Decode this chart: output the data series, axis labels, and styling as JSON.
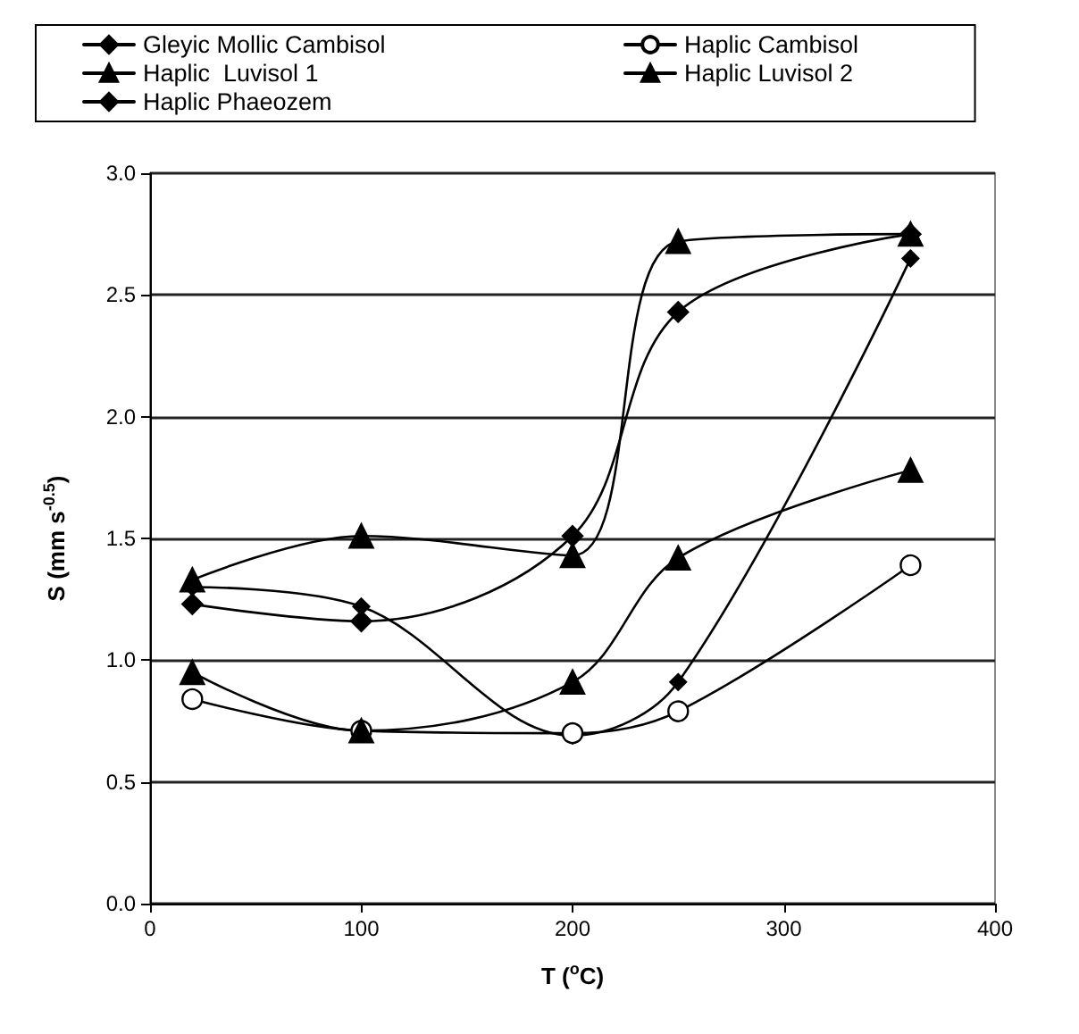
{
  "chart_data": {
    "type": "line",
    "xlabel": "T ($^{o}$C)",
    "ylabel": "S (mm s$^{-0.5}$)",
    "x": [
      20,
      100,
      200,
      250,
      360
    ],
    "series": [
      {
        "name": "Gleyic Mollic Cambisol",
        "color": "#000000",
        "marker": "diamond",
        "values": [
          1.3,
          1.22,
          0.69,
          0.91,
          2.65
        ]
      },
      {
        "name": "Haplic Cambisol",
        "color": "#000000",
        "marker": "circle",
        "values": [
          0.84,
          0.71,
          0.7,
          0.79,
          1.39
        ]
      },
      {
        "name": "Haplic  Luvisol 1",
        "color": "#000000",
        "marker": "triangle",
        "values": [
          1.33,
          1.51,
          1.43,
          2.72,
          2.75
        ]
      },
      {
        "name": "Haplic Luvisol 2",
        "color": "#000000",
        "marker": "triangle",
        "values": [
          0.95,
          0.71,
          0.91,
          1.42,
          1.78
        ]
      },
      {
        "name": "Haplic Phaeozem",
        "color": "#000000",
        "marker": "diamond",
        "values": [
          1.23,
          1.16,
          1.51,
          2.43,
          2.75
        ]
      }
    ],
    "xlim": [
      0,
      400
    ],
    "xticks": [
      0,
      100,
      200,
      300,
      400
    ],
    "ylim": [
      0,
      3
    ],
    "yticks": [
      {
        "value": 0,
        "label": "0.0"
      },
      {
        "value": 0.5,
        "label": "0.5"
      },
      {
        "value": 1,
        "label": "1.0"
      },
      {
        "value": 1.5,
        "label": "1.5"
      },
      {
        "value": 2,
        "label": "2.0"
      },
      {
        "value": 2.5,
        "label": "2.5"
      },
      {
        "value": 3,
        "label": "3.0"
      }
    ],
    "grid": "y",
    "legend": "top",
    "line_style": "solid"
  }
}
